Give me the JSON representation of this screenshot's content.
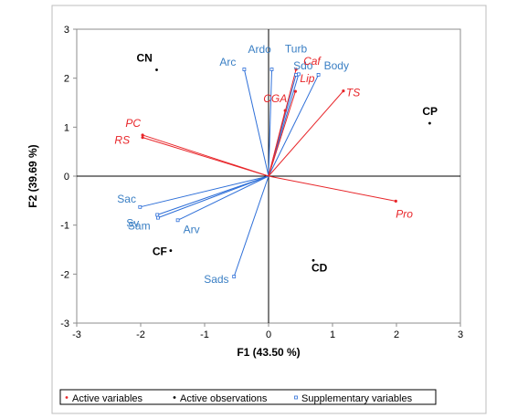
{
  "chart_data": {
    "type": "biplot",
    "xlabel": "F1 (43.50 %)",
    "ylabel": "F2 (39.69 %)",
    "xlim": [
      -3,
      3
    ],
    "ylim": [
      -3,
      3
    ],
    "xticks": [
      "-3",
      "-2",
      "-1",
      "0",
      "1",
      "2",
      "3"
    ],
    "yticks": [
      "-3",
      "-2",
      "-1",
      "0",
      "1",
      "2",
      "3"
    ],
    "grid": false,
    "legend": {
      "placement": "bottom",
      "entries": [
        {
          "label": "Active variables",
          "marker": "dot",
          "color": "#e8262a"
        },
        {
          "label": "Active observations",
          "marker": "dot",
          "color": "#000000"
        },
        {
          "label": "Supplementary variables",
          "marker": "square",
          "color": "#2e6fd8"
        }
      ]
    },
    "colors": {
      "active_variables": "#e8262a",
      "active_observations": "#000000",
      "supplementary_variables": "#2e6fd8",
      "supplementary_label": "#3a7fc4"
    },
    "series": [
      {
        "name": "Active variables",
        "points": [
          {
            "label": "PC",
            "x": -1.97,
            "y": 0.84
          },
          {
            "label": "RS",
            "x": -1.97,
            "y": 0.79
          },
          {
            "label": "Caf",
            "x": 0.43,
            "y": 2.18
          },
          {
            "label": "CGA",
            "x": 0.26,
            "y": 1.34
          },
          {
            "label": "Lip",
            "x": 0.42,
            "y": 1.73
          },
          {
            "label": "TS",
            "x": 1.17,
            "y": 1.74
          },
          {
            "label": "Pro",
            "x": 1.99,
            "y": -0.51
          }
        ]
      },
      {
        "name": "Active observations",
        "points": [
          {
            "label": "CN",
            "x": -1.75,
            "y": 2.17
          },
          {
            "label": "CP",
            "x": 2.52,
            "y": 1.08
          },
          {
            "label": "CF",
            "x": -1.53,
            "y": -1.52
          },
          {
            "label": "CD",
            "x": 0.7,
            "y": -1.72
          }
        ]
      },
      {
        "name": "Supplementary variables",
        "points": [
          {
            "label": "Arc",
            "x": -0.38,
            "y": 2.18
          },
          {
            "label": "Ardo",
            "x": 0.05,
            "y": 2.18
          },
          {
            "label": "Turb",
            "x": 0.47,
            "y": 2.08
          },
          {
            "label": "Sdo",
            "x": 0.43,
            "y": 2.07
          },
          {
            "label": "Body",
            "x": 0.78,
            "y": 2.07
          },
          {
            "label": "Sac",
            "x": -2.01,
            "y": -0.63
          },
          {
            "label": "Sv",
            "x": -1.74,
            "y": -0.79
          },
          {
            "label": "Sam",
            "x": -1.73,
            "y": -0.85
          },
          {
            "label": "Arv",
            "x": -1.42,
            "y": -0.9
          },
          {
            "label": "Sads",
            "x": -0.54,
            "y": -2.05
          }
        ]
      }
    ]
  }
}
